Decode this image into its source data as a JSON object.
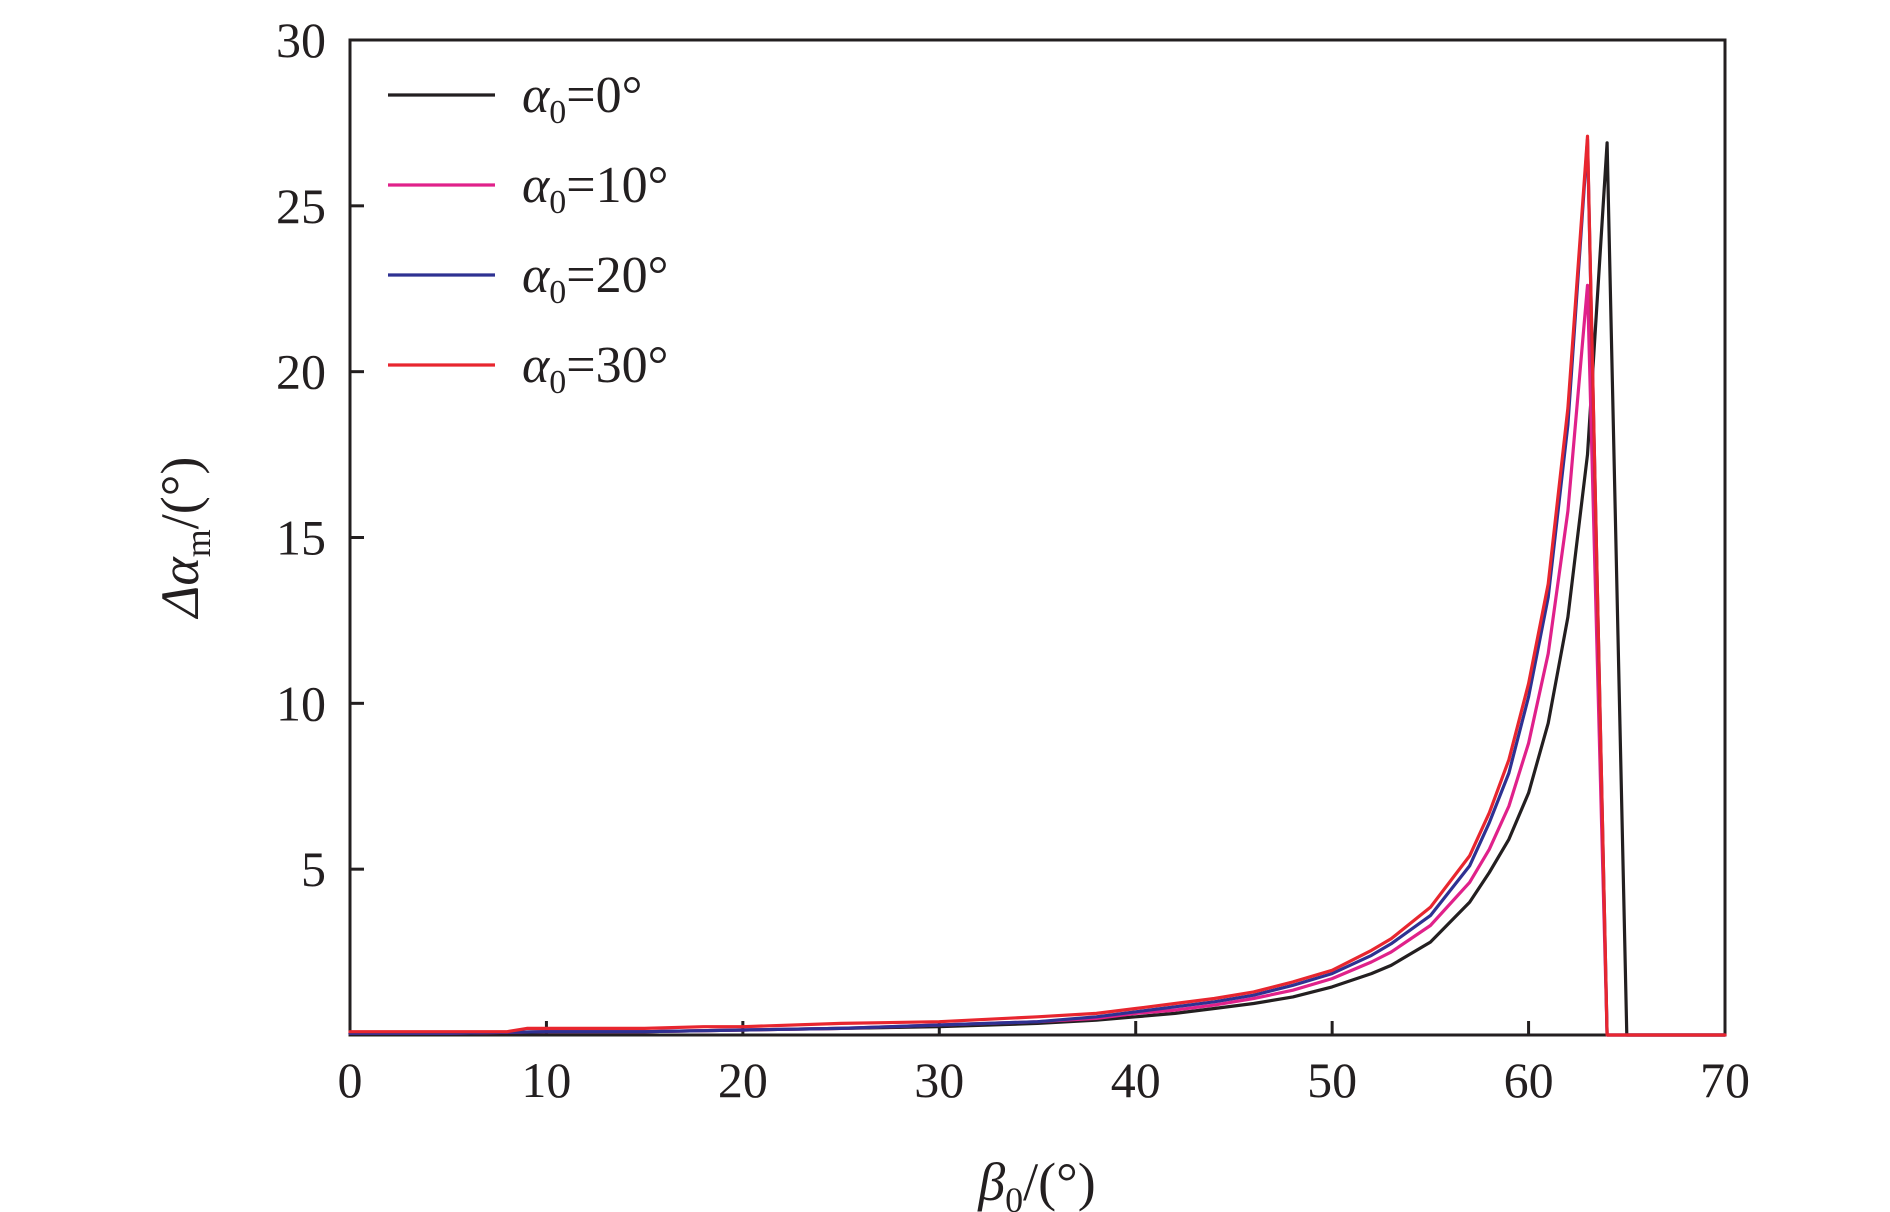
{
  "chart_data": {
    "type": "line",
    "title": "",
    "xlabel": {
      "prefix": "β",
      "sub": "0",
      "suffix": "/(°)"
    },
    "ylabel": {
      "prefix": "Δα",
      "sub": "m",
      "suffix": "/(°)"
    },
    "xlim": [
      0,
      70
    ],
    "ylim": [
      0,
      30
    ],
    "xticks": [
      0,
      10,
      20,
      30,
      40,
      50,
      60,
      70
    ],
    "yticks": [
      5,
      10,
      15,
      20,
      25,
      30
    ],
    "grid": false,
    "legend_position": "top-left",
    "series": [
      {
        "name": "α0=0°",
        "legend": {
          "prefix": "α",
          "sub": "0",
          "suffix": "=0°"
        },
        "color": "#231f20",
        "x": [
          0,
          5,
          10,
          15,
          20,
          25,
          30,
          35,
          38,
          40,
          42,
          44,
          46,
          48,
          50,
          52,
          53,
          55,
          57,
          58,
          59,
          60,
          61,
          62,
          63,
          64,
          65,
          66,
          70
        ],
        "y": [
          0.05,
          0.05,
          0.1,
          0.1,
          0.15,
          0.2,
          0.25,
          0.35,
          0.45,
          0.55,
          0.65,
          0.8,
          0.95,
          1.15,
          1.45,
          1.85,
          2.1,
          2.8,
          4.0,
          4.9,
          5.9,
          7.3,
          9.4,
          12.6,
          17.5,
          26.9,
          0,
          0,
          0
        ]
      },
      {
        "name": "α0=10°",
        "legend": {
          "prefix": "α",
          "sub": "0",
          "suffix": "=10°"
        },
        "color": "#e0218a",
        "x": [
          0,
          5,
          10,
          15,
          20,
          25,
          30,
          35,
          38,
          40,
          42,
          44,
          46,
          48,
          50,
          52,
          53,
          55,
          57,
          58,
          59,
          60,
          61,
          62,
          63,
          64,
          70
        ],
        "y": [
          0.05,
          0.05,
          0.1,
          0.1,
          0.15,
          0.2,
          0.3,
          0.4,
          0.5,
          0.65,
          0.75,
          0.9,
          1.1,
          1.35,
          1.7,
          2.2,
          2.5,
          3.3,
          4.6,
          5.6,
          6.9,
          8.8,
          11.5,
          15.8,
          22.6,
          0,
          0
        ]
      },
      {
        "name": "α0=20°",
        "legend": {
          "prefix": "α",
          "sub": "0",
          "suffix": "=20°"
        },
        "color": "#2e3192",
        "x": [
          0,
          5,
          10,
          15,
          20,
          25,
          30,
          35,
          38,
          40,
          42,
          44,
          46,
          48,
          50,
          52,
          53,
          55,
          57,
          58,
          59,
          60,
          61,
          62,
          63,
          64,
          70
        ],
        "y": [
          0.05,
          0.05,
          0.1,
          0.1,
          0.15,
          0.2,
          0.3,
          0.4,
          0.55,
          0.7,
          0.85,
          1.0,
          1.2,
          1.5,
          1.85,
          2.4,
          2.75,
          3.6,
          5.1,
          6.4,
          7.9,
          10.2,
          13.2,
          18.4,
          27.0,
          0,
          0
        ]
      },
      {
        "name": "α0=30°",
        "legend": {
          "prefix": "α",
          "sub": "0",
          "suffix": "=30°"
        },
        "color": "#e8262f",
        "x": [
          0,
          5,
          8,
          9,
          15,
          18,
          20,
          25,
          30,
          35,
          38,
          40,
          42,
          44,
          46,
          48,
          50,
          52,
          53,
          55,
          57,
          58,
          59,
          60,
          61,
          62,
          63,
          64,
          70
        ],
        "y": [
          0.1,
          0.1,
          0.1,
          0.2,
          0.2,
          0.25,
          0.25,
          0.35,
          0.4,
          0.55,
          0.65,
          0.8,
          0.95,
          1.1,
          1.3,
          1.6,
          1.95,
          2.55,
          2.9,
          3.85,
          5.4,
          6.7,
          8.3,
          10.6,
          13.6,
          18.9,
          27.1,
          0,
          0
        ]
      }
    ]
  }
}
